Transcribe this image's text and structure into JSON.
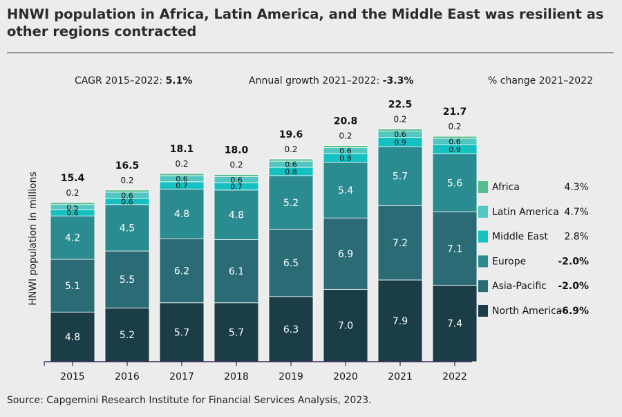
{
  "title": "HNWI population in Africa, Latin America, and the Middle East was resilient as other regions contracted",
  "stats": {
    "cagr_label": "CAGR 2015–2022: ",
    "cagr_value": "5.1%",
    "annual_label": "Annual growth 2021–2022: ",
    "annual_value": "-3.3%",
    "pct_change_label": "% change 2021–2022"
  },
  "source": "Source: Capgemini Research Institute for Financial Services Analysis, 2023.",
  "colors": {
    "north_america": "#1b3d46",
    "asia_pacific": "#2a6b75",
    "europe": "#2a8b90",
    "middle_east": "#14c0c0",
    "latin_america": "#52c6c0",
    "africa": "#58bd8c",
    "axis": "#3b2458"
  },
  "chart_data": {
    "type": "bar",
    "stacked": true,
    "title": "HNWI population in Africa, Latin America, and the Middle East was resilient as other regions contracted",
    "xlabel": "",
    "ylabel": "HNWI population in millions",
    "categories": [
      "2015",
      "2016",
      "2017",
      "2018",
      "2019",
      "2020",
      "2021",
      "2022"
    ],
    "totals": [
      "15.4",
      "16.5",
      "18.1",
      "18.0",
      "19.6",
      "20.8",
      "22.5",
      "21.7"
    ],
    "ylim": [
      0,
      25
    ],
    "series": [
      {
        "name": "North America",
        "key": "north_america",
        "change": "-6.9%",
        "values": [
          4.8,
          5.2,
          5.7,
          5.7,
          6.3,
          7.0,
          7.9,
          7.4
        ]
      },
      {
        "name": "Asia-Pacific",
        "key": "asia_pacific",
        "change": "-2.0%",
        "values": [
          5.1,
          5.5,
          6.2,
          6.1,
          6.5,
          6.9,
          7.2,
          7.1
        ]
      },
      {
        "name": "Europe",
        "key": "europe",
        "change": "-2.0%",
        "values": [
          4.2,
          4.5,
          4.8,
          4.8,
          5.2,
          5.4,
          5.7,
          5.6
        ]
      },
      {
        "name": "Middle East",
        "key": "middle_east",
        "change": "2.8%",
        "values": [
          0.6,
          0.6,
          0.7,
          0.7,
          0.8,
          0.8,
          0.9,
          0.9
        ]
      },
      {
        "name": "Latin America",
        "key": "latin_america",
        "change": "4.7%",
        "values": [
          0.5,
          0.6,
          0.6,
          0.6,
          0.6,
          0.6,
          0.6,
          0.6
        ]
      },
      {
        "name": "Africa",
        "key": "africa",
        "change": "4.3%",
        "values": [
          0.2,
          0.2,
          0.2,
          0.2,
          0.2,
          0.2,
          0.2,
          0.2
        ]
      }
    ],
    "legend_order": [
      "Africa",
      "Latin America",
      "Middle East",
      "Europe",
      "Asia-Pacific",
      "North America"
    ],
    "legend_bold_changes": [
      "Europe",
      "Asia-Pacific",
      "North America"
    ]
  }
}
